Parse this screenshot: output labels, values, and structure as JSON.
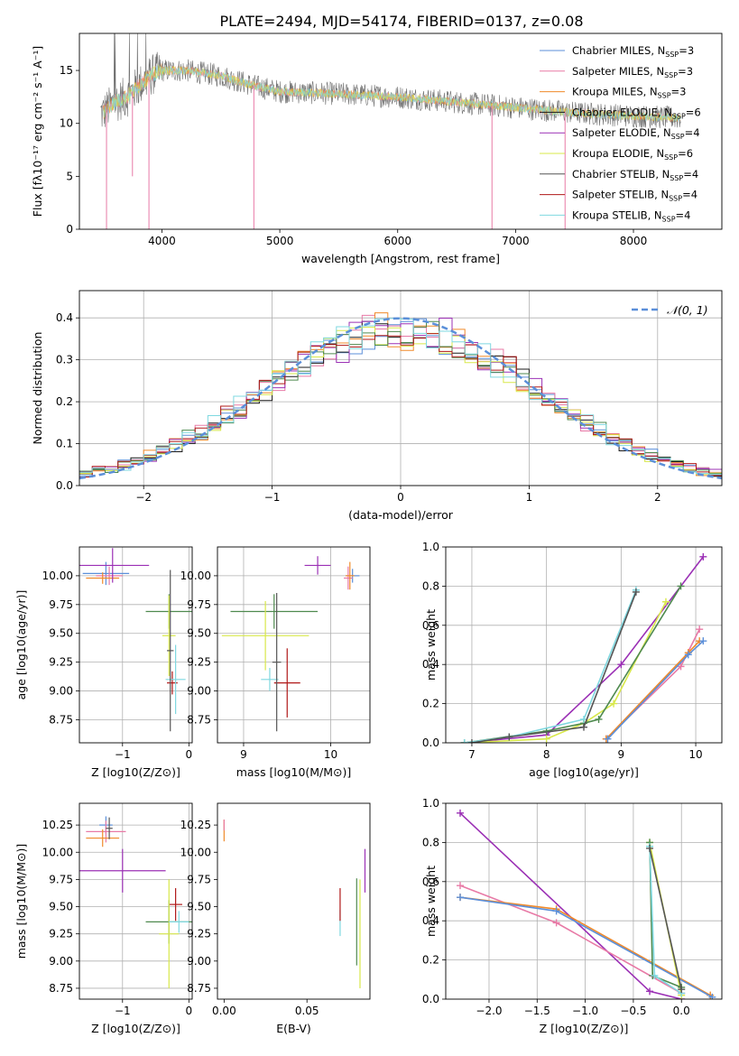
{
  "title": "PLATE=2494, MJD=54174, FIBERID=0137, z=0.08",
  "colors": {
    "chabrier_miles": "#5b8fd9",
    "salpeter_miles": "#e87aa6",
    "kroupa_miles": "#f08a2a",
    "chabrier_elodie": "#1a1a1a",
    "salpeter_elodie": "#9b30b5",
    "kroupa_elodie": "#d8e84a",
    "chabrier_stelib": "#555555",
    "salpeter_stelib": "#b01818",
    "kroupa_stelib": "#7fd8e0",
    "green": "#4f8a4f",
    "grid": "#b0b0b0"
  },
  "chart_data": [
    {
      "id": "spectrum",
      "type": "line",
      "xlabel": "wavelength [Angstrom, rest frame]",
      "ylabel": "Flux [fλ10⁻¹⁷ erg cm⁻² s⁻¹ A⁻¹]",
      "xlim": [
        3300,
        8750
      ],
      "ylim": [
        0,
        18.5
      ],
      "xticks": [
        4000,
        5000,
        6000,
        7000,
        8000
      ],
      "yticks": [
        0,
        5,
        10,
        15
      ],
      "grid": false,
      "legend_position": "top-right",
      "legend": [
        "Chabrier MILES, N_SSP=3",
        "Salpeter MILES, N_SSP=3",
        "Kroupa MILES, N_SSP=3",
        "Chabrier ELODIE, N_SSP=6",
        "Salpeter ELODIE, N_SSP=4",
        "Kroupa ELODIE, N_SSP=6",
        "Chabrier STELIB, N_SSP=4",
        "Salpeter STELIB, N_SSP=4",
        "Kroupa STELIB, N_SSP=4"
      ],
      "continuum": {
        "x": [
          3500,
          3600,
          3700,
          3800,
          3900,
          4000,
          4200,
          4500,
          4800,
          5000,
          5500,
          6000,
          6500,
          7000,
          7500,
          8000,
          8400
        ],
        "y": [
          11,
          12,
          12.5,
          13.5,
          14.5,
          15,
          15,
          14.5,
          13.5,
          13,
          12.8,
          12.5,
          12,
          11.5,
          11,
          10.7,
          10.5
        ]
      },
      "dips": [
        {
          "x": 3530,
          "y": 0
        },
        {
          "x": 3750,
          "y": 5
        },
        {
          "x": 3890,
          "y": 0
        },
        {
          "x": 4780,
          "y": 0
        },
        {
          "x": 6800,
          "y": 0
        },
        {
          "x": 7420,
          "y": 0
        }
      ]
    },
    {
      "id": "residuals",
      "type": "line",
      "xlabel": "(data-model)/error",
      "ylabel": "Normed distribution",
      "xlim": [
        -2.5,
        2.5
      ],
      "ylim": [
        0,
        0.465
      ],
      "xticks": [
        -2,
        -1,
        0,
        1,
        2
      ],
      "yticks": [
        0.0,
        0.1,
        0.2,
        0.3,
        0.4
      ],
      "grid": true,
      "legend_position": "top-right",
      "legend": [
        "𝒩(0, 1)"
      ],
      "bin_width": 0.1,
      "bin_start": -2.5,
      "n_bins": 50
    },
    {
      "id": "age_vs_Z",
      "type": "scatter",
      "xlabel": "Z [log10(Z/Z⊙)]",
      "ylabel": "age  [log10(age/yr)]",
      "xlim": [
        -1.65,
        0.05
      ],
      "ylim": [
        8.55,
        10.25
      ],
      "xticks": [
        -1,
        0
      ],
      "yticks": [
        8.75,
        9.0,
        9.25,
        9.5,
        9.75,
        10.0
      ],
      "grid": true,
      "points": [
        {
          "x": -1.25,
          "y": 10.02,
          "xerr": 0.35,
          "yerr": 0.1,
          "c": "#5b8fd9"
        },
        {
          "x": -1.2,
          "y": 10.0,
          "xerr": 0.2,
          "yerr": 0.08,
          "c": "#e87aa6"
        },
        {
          "x": -1.3,
          "y": 9.98,
          "xerr": 0.25,
          "yerr": 0.05,
          "c": "#f08a2a"
        },
        {
          "x": -1.15,
          "y": 10.09,
          "xerr": 0.55,
          "yerr": 0.15,
          "c": "#9b30b5"
        },
        {
          "x": -0.3,
          "y": 9.69,
          "xerr": 0.35,
          "yerr": 0.15,
          "c": "#4f8a4f"
        },
        {
          "x": -0.3,
          "y": 9.48,
          "xerr": 0.1,
          "yerr": 0.35,
          "c": "#d8e84a"
        },
        {
          "x": -0.25,
          "y": 9.07,
          "xerr": 0.08,
          "yerr": 0.1,
          "c": "#b01818"
        },
        {
          "x": -0.2,
          "y": 9.1,
          "xerr": 0.15,
          "yerr": 0.3,
          "c": "#7fd8e0"
        },
        {
          "x": -0.28,
          "y": 9.35,
          "xerr": 0.05,
          "yerr": 0.7,
          "c": "#555555"
        }
      ]
    },
    {
      "id": "age_vs_mass",
      "type": "scatter",
      "xlabel": "mass [log10(M/M⊙)]",
      "ylabel": "",
      "xlim": [
        8.7,
        10.45
      ],
      "ylim": [
        8.55,
        10.25
      ],
      "xticks": [
        9,
        10
      ],
      "yticks": [
        8.75,
        9.0,
        9.25,
        9.5,
        9.75,
        10.0
      ],
      "grid": true,
      "points": [
        {
          "x": 10.25,
          "y": 10.0,
          "xerr": 0.08,
          "yerr": 0.06,
          "c": "#5b8fd9"
        },
        {
          "x": 10.2,
          "y": 9.98,
          "xerr": 0.05,
          "yerr": 0.1,
          "c": "#e87aa6"
        },
        {
          "x": 10.22,
          "y": 10.0,
          "xerr": 0.05,
          "yerr": 0.12,
          "c": "#f08a2a"
        },
        {
          "x": 9.85,
          "y": 10.09,
          "xerr": 0.15,
          "yerr": 0.08,
          "c": "#9b30b5"
        },
        {
          "x": 9.35,
          "y": 9.69,
          "xerr": 0.5,
          "yerr": 0.15,
          "c": "#4f8a4f"
        },
        {
          "x": 9.25,
          "y": 9.48,
          "xerr": 0.5,
          "yerr": 0.3,
          "c": "#d8e84a"
        },
        {
          "x": 9.5,
          "y": 9.07,
          "xerr": 0.15,
          "yerr": 0.3,
          "c": "#b01818"
        },
        {
          "x": 9.3,
          "y": 9.1,
          "xerr": 0.1,
          "yerr": 0.1,
          "c": "#7fd8e0"
        },
        {
          "x": 9.38,
          "y": 9.25,
          "xerr": 0.05,
          "yerr": 0.6,
          "c": "#555555"
        }
      ]
    },
    {
      "id": "massweight_vs_age",
      "type": "line",
      "xlabel": "age  [log10(age/yr)]",
      "ylabel": "mass weight",
      "xlim": [
        6.65,
        10.35
      ],
      "ylim": [
        0,
        1.0
      ],
      "xticks": [
        7,
        8,
        9,
        10
      ],
      "yticks": [
        0.0,
        0.2,
        0.4,
        0.6,
        0.8,
        1.0
      ],
      "grid": true,
      "series": [
        {
          "c": "#9b30b5",
          "x": [
            6.9,
            8.0,
            9.0,
            10.1
          ],
          "y": [
            0.0,
            0.04,
            0.4,
            0.95
          ]
        },
        {
          "c": "#d8e84a",
          "x": [
            6.9,
            8.0,
            8.5,
            8.9,
            9.6
          ],
          "y": [
            0.0,
            0.02,
            0.1,
            0.2,
            0.72
          ]
        },
        {
          "c": "#4f8a4f",
          "x": [
            6.9,
            8.0,
            8.5,
            8.7,
            9.8
          ],
          "y": [
            0.0,
            0.06,
            0.1,
            0.12,
            0.8
          ]
        },
        {
          "c": "#7fd8e0",
          "x": [
            6.9,
            7.5,
            8.5,
            9.2
          ],
          "y": [
            0.0,
            0.03,
            0.12,
            0.78
          ]
        },
        {
          "c": "#555555",
          "x": [
            7.0,
            7.5,
            8.5,
            9.2
          ],
          "y": [
            0.0,
            0.03,
            0.08,
            0.77
          ]
        },
        {
          "c": "#e87aa6",
          "x": [
            8.8,
            9.8,
            10.05
          ],
          "y": [
            0.02,
            0.39,
            0.58
          ]
        },
        {
          "c": "#f08a2a",
          "x": [
            8.8,
            9.9,
            10.05
          ],
          "y": [
            0.02,
            0.46,
            0.52
          ]
        },
        {
          "c": "#5b8fd9",
          "x": [
            8.82,
            9.9,
            10.1
          ],
          "y": [
            0.02,
            0.45,
            0.52
          ]
        }
      ]
    },
    {
      "id": "mass_vs_Z",
      "type": "scatter",
      "xlabel": "Z [log10(Z/Z⊙)]",
      "ylabel": "mass [log10(M/M⊙)]",
      "xlim": [
        -1.65,
        0.05
      ],
      "ylim": [
        8.65,
        10.45
      ],
      "xticks": [
        -1,
        0
      ],
      "yticks": [
        8.75,
        9.0,
        9.25,
        9.5,
        9.75,
        10.0,
        10.25
      ],
      "grid": true,
      "points": [
        {
          "x": -1.25,
          "y": 10.25,
          "xerr": 0.1,
          "yerr": 0.08,
          "c": "#5b8fd9"
        },
        {
          "x": -1.25,
          "y": 10.19,
          "xerr": 0.3,
          "yerr": 0.1,
          "c": "#e87aa6"
        },
        {
          "x": -1.3,
          "y": 10.13,
          "xerr": 0.25,
          "yerr": 0.08,
          "c": "#f08a2a"
        },
        {
          "x": -1.2,
          "y": 10.22,
          "xerr": 0.05,
          "yerr": 0.1,
          "c": "#555555"
        },
        {
          "x": -1.0,
          "y": 9.83,
          "xerr": 0.65,
          "yerr": 0.2,
          "c": "#9b30b5"
        },
        {
          "x": -0.2,
          "y": 9.52,
          "xerr": 0.1,
          "yerr": 0.15,
          "c": "#b01818"
        },
        {
          "x": -0.3,
          "y": 9.36,
          "xerr": 0.35,
          "yerr": 0.2,
          "c": "#4f8a4f"
        },
        {
          "x": -0.3,
          "y": 9.25,
          "xerr": 0.15,
          "yerr": 0.5,
          "c": "#d8e84a"
        },
        {
          "x": -0.15,
          "y": 9.36,
          "xerr": 0.15,
          "yerr": 0.1,
          "c": "#7fd8e0"
        }
      ]
    },
    {
      "id": "mass_vs_EBV",
      "type": "scatter",
      "xlabel": "E(B-V)",
      "ylabel": "",
      "xlim": [
        -0.004,
        0.088
      ],
      "ylim": [
        8.65,
        10.45
      ],
      "xticks": [
        0.0,
        0.05
      ],
      "yticks": [
        8.75,
        9.0,
        9.25,
        9.5,
        9.75,
        10.0,
        10.25
      ],
      "grid": false,
      "points": [
        {
          "x": 0.0,
          "y": 10.2,
          "xerr": 0.0,
          "yerr": 0.1,
          "c": "#f08a2a"
        },
        {
          "x": 0.0,
          "y": 10.25,
          "xerr": 0.0,
          "yerr": 0.05,
          "c": "#e87aa6"
        },
        {
          "x": 0.07,
          "y": 9.35,
          "xerr": 0.0,
          "yerr": 0.12,
          "c": "#7fd8e0"
        },
        {
          "x": 0.07,
          "y": 9.52,
          "xerr": 0.0,
          "yerr": 0.15,
          "c": "#b01818"
        },
        {
          "x": 0.08,
          "y": 9.36,
          "xerr": 0.0,
          "yerr": 0.4,
          "c": "#4f8a4f"
        },
        {
          "x": 0.082,
          "y": 9.25,
          "xerr": 0.0,
          "yerr": 0.5,
          "c": "#d8e84a"
        },
        {
          "x": 0.085,
          "y": 9.83,
          "xerr": 0.0,
          "yerr": 0.2,
          "c": "#9b30b5"
        }
      ]
    },
    {
      "id": "massweight_vs_Z",
      "type": "line",
      "xlabel": "Z [log10(Z/Z⊙)]",
      "ylabel": "mass weight",
      "xlim": [
        -2.45,
        0.42
      ],
      "ylim": [
        0,
        1.0
      ],
      "xticks": [
        -2.0,
        -1.5,
        -1.0,
        -0.5,
        0.0
      ],
      "yticks": [
        0.0,
        0.2,
        0.4,
        0.6,
        0.8,
        1.0
      ],
      "grid": true,
      "series": [
        {
          "c": "#9b30b5",
          "x": [
            -2.3,
            -0.33,
            0.0
          ],
          "y": [
            0.95,
            0.04,
            0.0
          ]
        },
        {
          "c": "#e87aa6",
          "x": [
            -2.3,
            -1.3,
            0.0
          ],
          "y": [
            0.58,
            0.39,
            0.03
          ]
        },
        {
          "c": "#f08a2a",
          "x": [
            -2.3,
            -1.3,
            0.3
          ],
          "y": [
            0.52,
            0.46,
            0.02
          ]
        },
        {
          "c": "#5b8fd9",
          "x": [
            -2.3,
            -1.3,
            0.32
          ],
          "y": [
            0.52,
            0.45,
            0.01
          ]
        },
        {
          "c": "#d8e84a",
          "x": [
            -0.33,
            0.0
          ],
          "y": [
            0.8,
            0.02
          ]
        },
        {
          "c": "#4f8a4f",
          "x": [
            -0.33,
            -0.3,
            0.0
          ],
          "y": [
            0.8,
            0.12,
            0.06
          ]
        },
        {
          "c": "#7fd8e0",
          "x": [
            -0.33,
            -0.28,
            0.0
          ],
          "y": [
            0.78,
            0.12,
            0.03
          ]
        },
        {
          "c": "#555555",
          "x": [
            -0.33,
            0.0
          ],
          "y": [
            0.77,
            0.05
          ]
        }
      ]
    }
  ]
}
